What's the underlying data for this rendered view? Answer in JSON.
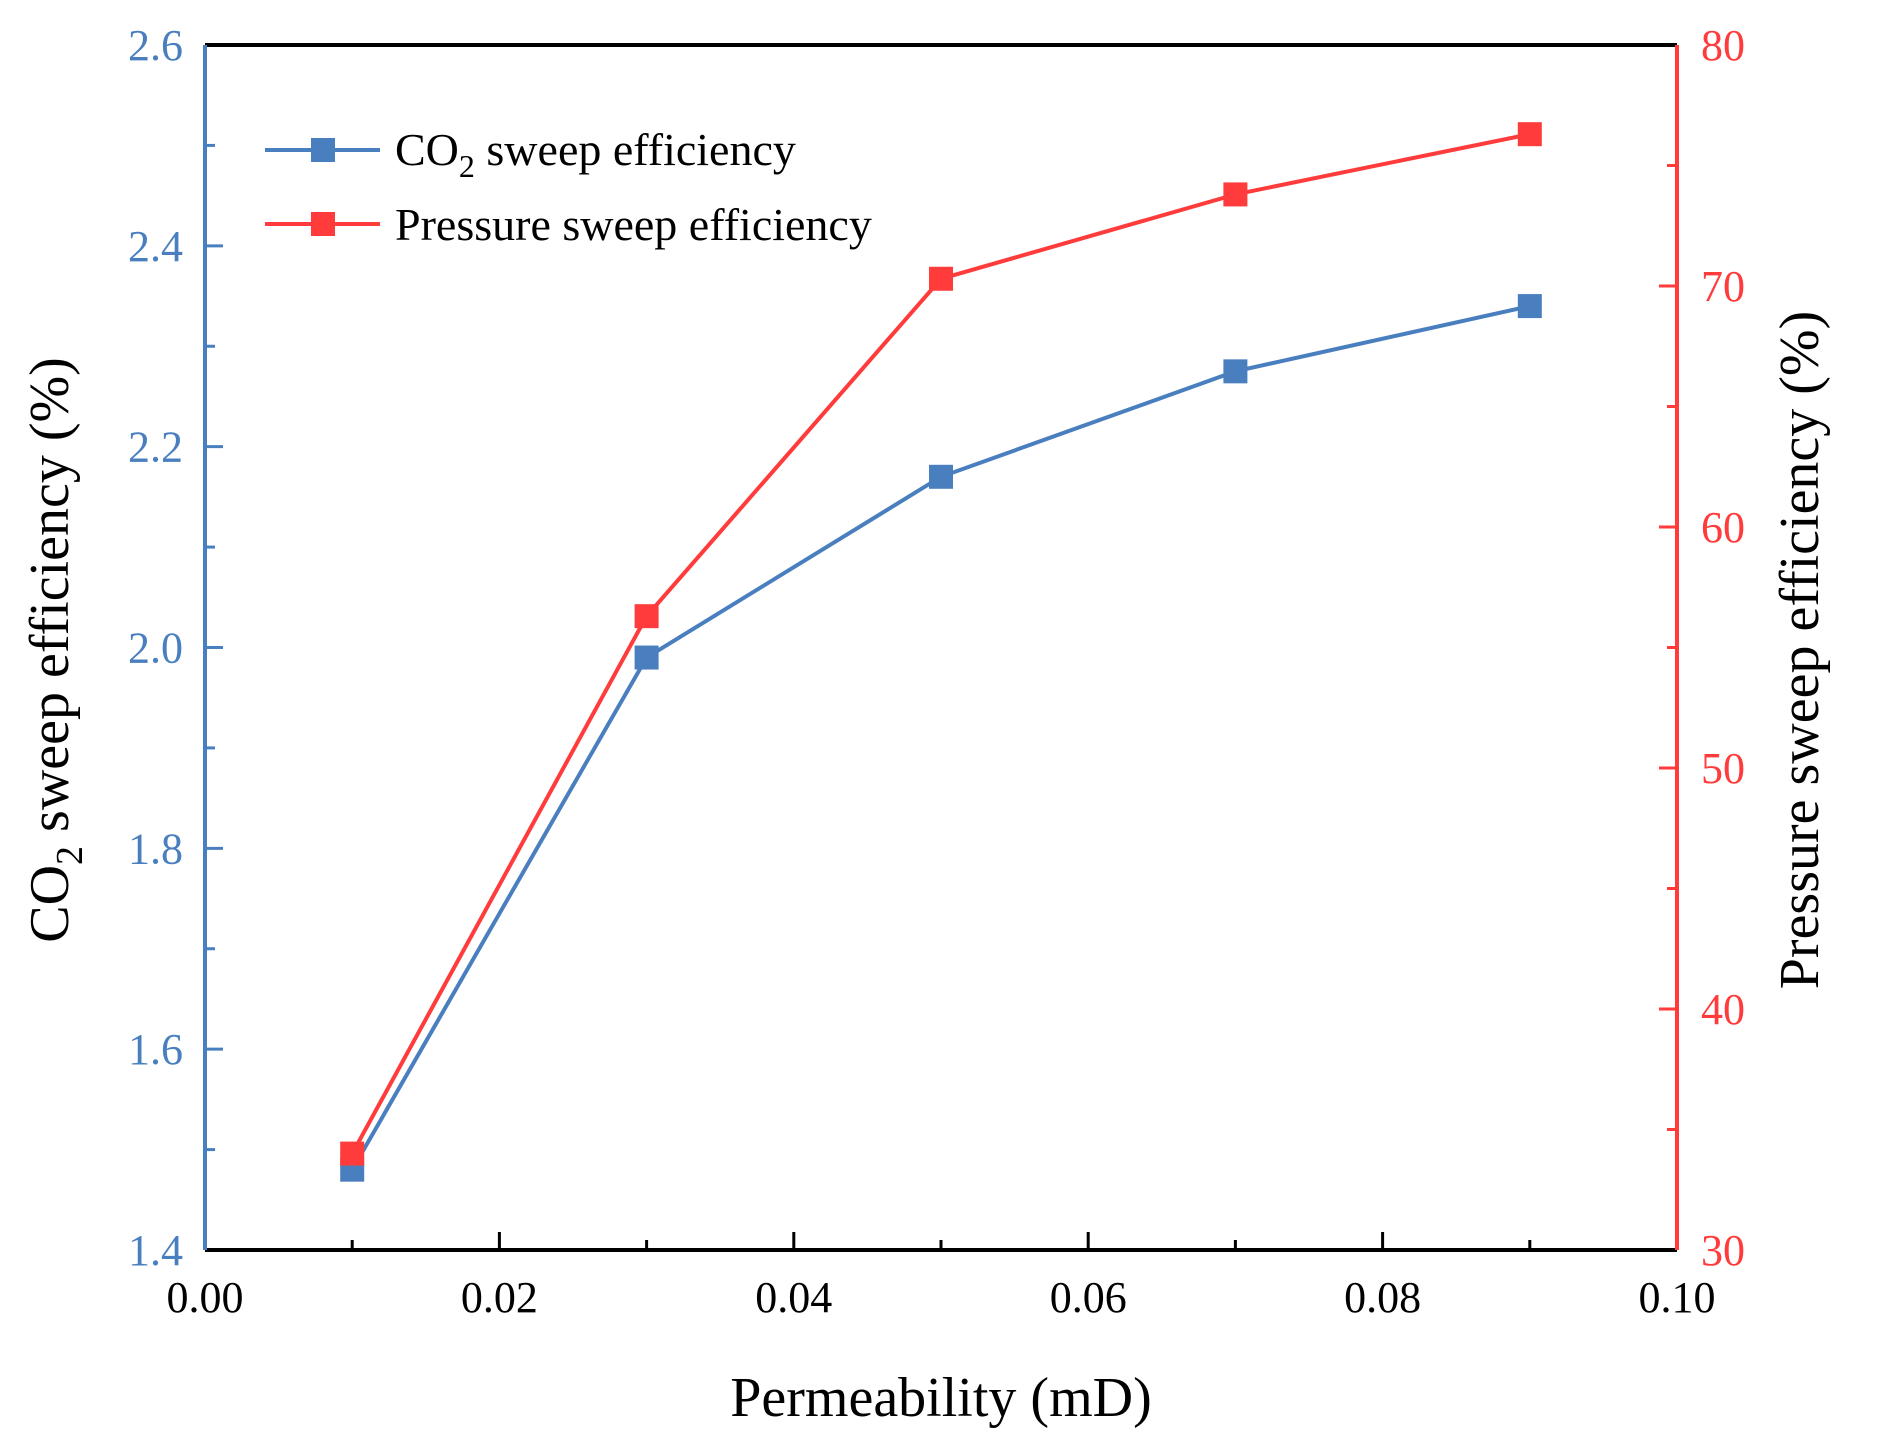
{
  "chart_data": {
    "type": "line",
    "x": [
      0.01,
      0.03,
      0.05,
      0.07,
      0.09
    ],
    "xlabel": "Permeability (mD)",
    "xlim": [
      0.0,
      0.1
    ],
    "xticks": [
      "0.00",
      "0.02",
      "0.04",
      "0.06",
      "0.08",
      "0.10"
    ],
    "ylabel_left": {
      "prefix": "CO",
      "subscript": "2",
      "suffix": " sweep efficiency (%)"
    },
    "ylim_left": [
      1.4,
      2.6
    ],
    "yticks_left": [
      "1.4",
      "1.6",
      "1.8",
      "2.0",
      "2.2",
      "2.4",
      "2.6"
    ],
    "ylabel_right": "Pressure sweep efficiency (%)",
    "ylim_right": [
      30,
      80
    ],
    "yticks_right": [
      "30",
      "40",
      "50",
      "60",
      "70",
      "80"
    ],
    "series": [
      {
        "name": "CO2 sweep efficiency",
        "legend": {
          "prefix": "CO",
          "subscript": "2",
          "suffix": " sweep efficiency"
        },
        "axis": "left",
        "color": "#4a7fbf",
        "values": [
          1.48,
          1.99,
          2.17,
          2.275,
          2.34
        ]
      },
      {
        "name": "Pressure sweep efficiency",
        "legend": {
          "prefix": "Pressure sweep efficiency",
          "subscript": "",
          "suffix": ""
        },
        "axis": "right",
        "color": "#ff3b3b",
        "values": [
          34.0,
          56.3,
          70.3,
          73.8,
          76.3
        ]
      }
    ],
    "legend_position": "top-left",
    "grid": false
  }
}
